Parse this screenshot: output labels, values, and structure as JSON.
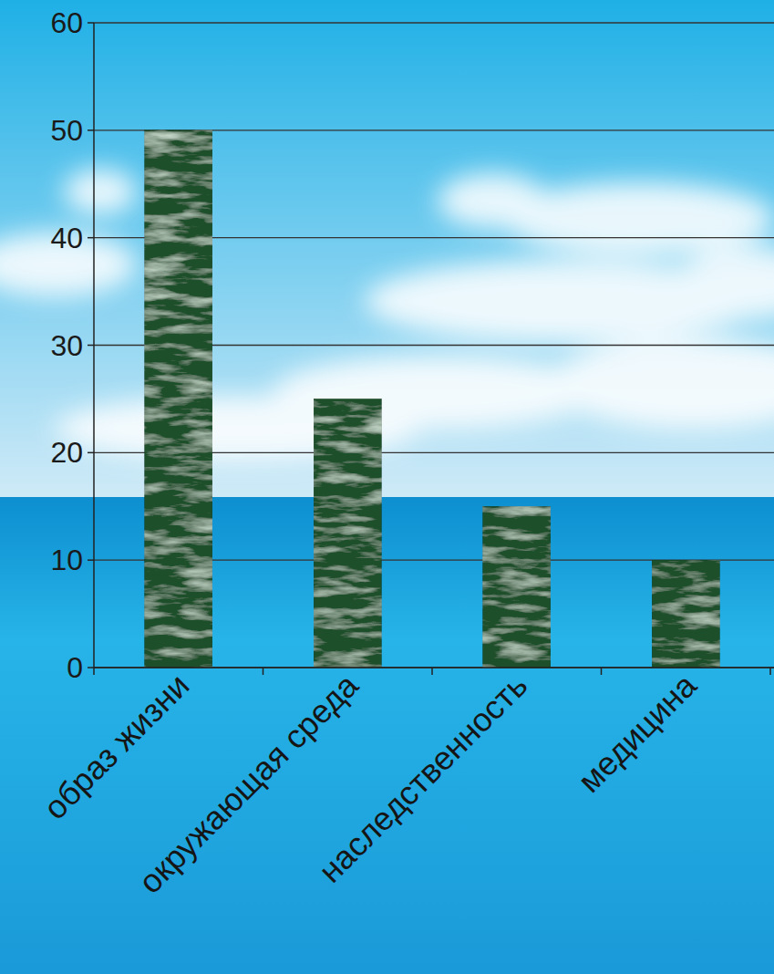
{
  "chart_data": {
    "type": "bar",
    "categories": [
      "образ жизни",
      "окружающая среда",
      "наследственность",
      "медицина"
    ],
    "values": [
      50,
      25,
      15,
      10
    ],
    "color": "#1f4f2c",
    "ylim": [
      0,
      60
    ],
    "yticks": [
      0,
      10,
      20,
      30,
      40,
      50,
      60
    ],
    "grid": true
  }
}
